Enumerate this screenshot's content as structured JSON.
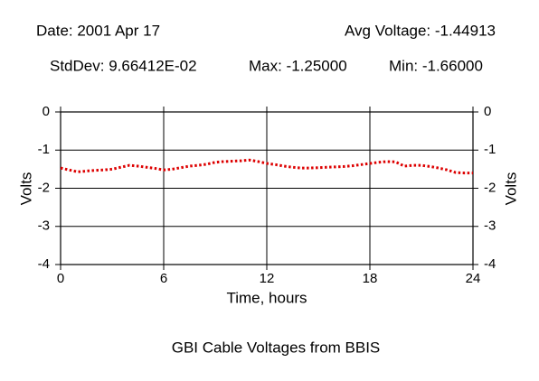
{
  "chart_data": {
    "type": "line",
    "title": "GBI Cable Voltages from BBIS",
    "annotations": [
      "Date: 2001 Apr 17",
      "Avg Voltage: -1.44913",
      "StdDev: 9.66412E-02",
      "Max: -1.25000",
      "Min: -1.66000"
    ],
    "xlabel": "Time, hours",
    "ylabel": "Volts",
    "x": [
      0,
      0.5,
      1,
      1.5,
      2,
      2.5,
      3,
      3.5,
      4,
      4.5,
      5,
      5.5,
      6,
      6.5,
      7,
      7.5,
      8,
      8.5,
      9,
      9.5,
      10,
      10.5,
      11,
      11.5,
      12,
      12.5,
      13,
      13.5,
      14,
      14.5,
      15,
      15.5,
      16,
      16.5,
      17,
      17.5,
      18,
      18.5,
      19,
      19.5,
      20,
      20.5,
      21,
      21.5,
      22,
      22.5,
      23,
      23.5,
      24
    ],
    "series": [
      {
        "name": "Volts",
        "color": "#dd0000",
        "values": [
          -1.47,
          -1.52,
          -1.57,
          -1.55,
          -1.53,
          -1.52,
          -1.5,
          -1.45,
          -1.4,
          -1.42,
          -1.45,
          -1.48,
          -1.52,
          -1.5,
          -1.46,
          -1.42,
          -1.4,
          -1.37,
          -1.32,
          -1.3,
          -1.29,
          -1.28,
          -1.26,
          -1.3,
          -1.35,
          -1.38,
          -1.42,
          -1.45,
          -1.47,
          -1.47,
          -1.46,
          -1.45,
          -1.44,
          -1.43,
          -1.41,
          -1.38,
          -1.35,
          -1.32,
          -1.3,
          -1.31,
          -1.42,
          -1.4,
          -1.4,
          -1.43,
          -1.47,
          -1.52,
          -1.59,
          -1.6,
          -1.6
        ]
      }
    ],
    "xlim": [
      0,
      24
    ],
    "xticks": [
      0,
      6,
      12,
      18,
      24
    ],
    "ylim": [
      -4,
      0
    ],
    "yticks": [
      0,
      -1,
      -2,
      -3,
      -4
    ],
    "grid": true
  }
}
